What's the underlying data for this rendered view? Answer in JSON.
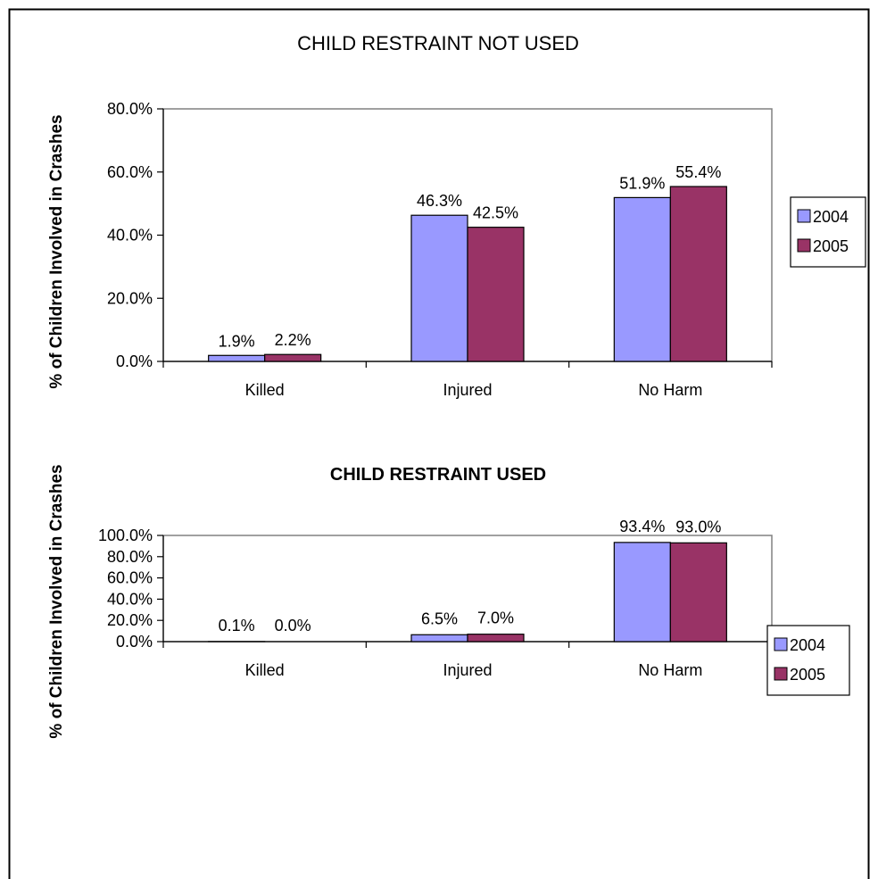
{
  "colors": {
    "series_2004": "#9999ff",
    "series_2005": "#993366",
    "frame": "#000000",
    "plot_border": "#808080"
  },
  "chart_data": [
    {
      "type": "bar",
      "title": "CHILD RESTRAINT NOT USED",
      "ylabel": "% of Children Involved in Crashes",
      "xlabel": "",
      "categories": [
        "Killed",
        "Injured",
        "No Harm"
      ],
      "series": [
        {
          "name": "2004",
          "values": [
            1.9,
            46.3,
            51.9
          ],
          "labels": [
            "1.9%",
            "46.3%",
            "51.9%"
          ]
        },
        {
          "name": "2005",
          "values": [
            2.2,
            42.5,
            55.4
          ],
          "labels": [
            "2.2%",
            "42.5%",
            "55.4%"
          ]
        }
      ],
      "ylim": [
        0,
        80
      ],
      "yticks": [
        0,
        20,
        40,
        60,
        80
      ],
      "ytick_labels": [
        "0.0%",
        "20.0%",
        "40.0%",
        "60.0%",
        "80.0%"
      ],
      "legend": "right",
      "grid": false
    },
    {
      "type": "bar",
      "title": "CHILD RESTRAINT USED",
      "ylabel": "% of Children Involved in Crashes",
      "xlabel": "",
      "categories": [
        "Killed",
        "Injured",
        "No Harm"
      ],
      "series": [
        {
          "name": "2004",
          "values": [
            0.1,
            6.5,
            93.4
          ],
          "labels": [
            "0.1%",
            "6.5%",
            "93.4%"
          ]
        },
        {
          "name": "2005",
          "values": [
            0.0,
            7.0,
            93.0
          ],
          "labels": [
            "0.0%",
            "7.0%",
            "93.0%"
          ]
        }
      ],
      "ylim": [
        0,
        100
      ],
      "yticks": [
        0,
        20,
        40,
        60,
        80,
        100
      ],
      "ytick_labels": [
        "0.0%",
        "20.0%",
        "40.0%",
        "60.0%",
        "80.0%",
        "100.0%"
      ],
      "legend": "right",
      "grid": false
    }
  ]
}
